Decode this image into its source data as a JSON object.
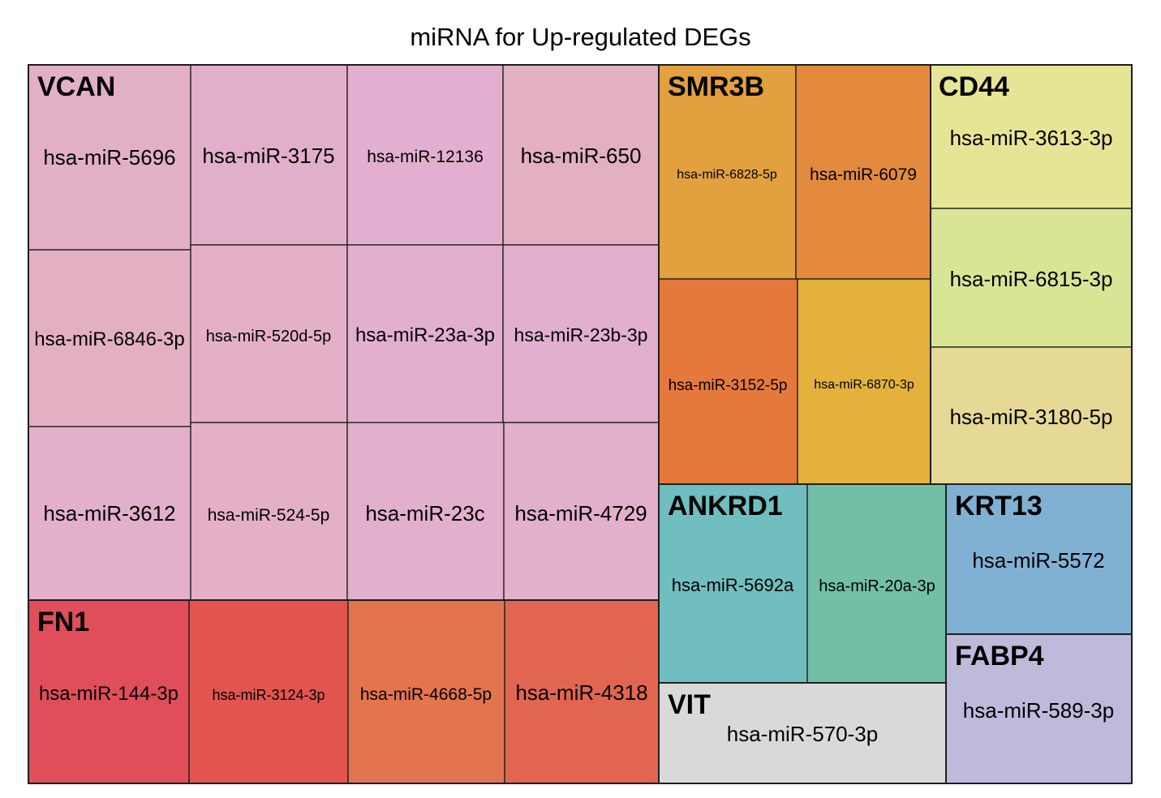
{
  "chart_data": {
    "type": "treemap",
    "title": "miRNA for Up-regulated DEGs",
    "groups": [
      {
        "name": "VCAN",
        "tiles": [
          {
            "label": "hsa-miR-5696",
            "value": 1,
            "color": "#e2b0c6"
          },
          {
            "label": "hsa-miR-6846-3p",
            "value": 1,
            "color": "#e2b0c2"
          },
          {
            "label": "hsa-miR-3612",
            "value": 1,
            "color": "#e3b0cb"
          },
          {
            "label": "hsa-miR-3175",
            "value": 1,
            "color": "#e2afcb"
          },
          {
            "label": "hsa-miR-520d-5p",
            "value": 1,
            "color": "#e3b0c7"
          },
          {
            "label": "hsa-miR-524-5p",
            "value": 1,
            "color": "#e3b0c5"
          },
          {
            "label": "hsa-miR-12136",
            "value": 1,
            "color": "#e2afd0"
          },
          {
            "label": "hsa-miR-23a-3p",
            "value": 1,
            "color": "#e2afcf"
          },
          {
            "label": "hsa-miR-23c",
            "value": 1,
            "color": "#e2afcd"
          },
          {
            "label": "hsa-miR-650",
            "value": 1,
            "color": "#e2b0c0"
          },
          {
            "label": "hsa-miR-23b-3p",
            "value": 1,
            "color": "#e2afce"
          },
          {
            "label": "hsa-miR-4729",
            "value": 1,
            "color": "#e2b0ca"
          }
        ]
      },
      {
        "name": "FN1",
        "tiles": [
          {
            "label": "hsa-miR-144-3p",
            "value": 1,
            "color": "#e04e5a"
          },
          {
            "label": "hsa-miR-3124-3p",
            "value": 1,
            "color": "#e2554f"
          },
          {
            "label": "hsa-miR-4668-5p",
            "value": 1,
            "color": "#e2754e"
          },
          {
            "label": "hsa-miR-4318",
            "value": 1,
            "color": "#e26552"
          }
        ]
      },
      {
        "name": "SMR3B",
        "tiles": [
          {
            "label": "hsa-miR-6828-5p",
            "value": 1,
            "color": "#e3a03e"
          },
          {
            "label": "hsa-miR-6079",
            "value": 1,
            "color": "#e38a3e"
          },
          {
            "label": "hsa-miR-3152-5p",
            "value": 1,
            "color": "#e5793c"
          },
          {
            "label": "hsa-miR-6870-3p",
            "value": 1,
            "color": "#e3b13c"
          }
        ]
      },
      {
        "name": "CD44",
        "tiles": [
          {
            "label": "hsa-miR-3613-3p",
            "value": 1,
            "color": "#e6e595"
          },
          {
            "label": "hsa-miR-6815-3p",
            "value": 1,
            "color": "#d9e595"
          },
          {
            "label": "hsa-miR-3180-5p",
            "value": 1,
            "color": "#e6d895"
          }
        ]
      },
      {
        "name": "ANKRD1",
        "tiles": [
          {
            "label": "hsa-miR-5692a",
            "value": 1,
            "color": "#70bebf"
          },
          {
            "label": "hsa-miR-20a-3p",
            "value": 1,
            "color": "#72bfa5"
          }
        ]
      },
      {
        "name": "KRT13",
        "tiles": [
          {
            "label": "hsa-miR-5572",
            "value": 1,
            "color": "#80b1d3"
          }
        ]
      },
      {
        "name": "FABP4",
        "tiles": [
          {
            "label": "hsa-miR-589-3p",
            "value": 1,
            "color": "#bdbadb"
          }
        ]
      },
      {
        "name": "VIT",
        "tiles": [
          {
            "label": "hsa-miR-570-3p",
            "value": 1,
            "color": "#d9d9d9"
          }
        ]
      }
    ]
  }
}
